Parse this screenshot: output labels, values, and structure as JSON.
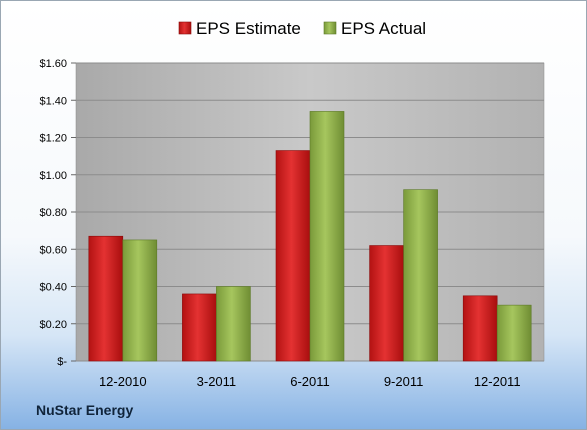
{
  "company": "NuStar Energy",
  "colors": {
    "estimate": "#cc1f1f",
    "actual": "#8fb04a",
    "plot_bg": "#bdbdbd"
  },
  "chart_data": {
    "type": "bar",
    "categories": [
      "12-2010",
      "3-2011",
      "6-2011",
      "9-2011",
      "12-2011"
    ],
    "series": [
      {
        "name": "EPS Estimate",
        "values": [
          0.67,
          0.36,
          1.13,
          0.62,
          0.35
        ]
      },
      {
        "name": "EPS Actual",
        "values": [
          0.65,
          0.4,
          1.34,
          0.92,
          0.3
        ]
      }
    ],
    "ylim": [
      0,
      1.6
    ],
    "yticks": [
      0,
      0.2,
      0.4,
      0.6,
      0.8,
      1.0,
      1.2,
      1.4,
      1.6
    ],
    "ytick_labels": [
      "$-",
      "$0.20",
      "$0.40",
      "$0.60",
      "$0.80",
      "$1.00",
      "$1.20",
      "$1.40",
      "$1.60"
    ],
    "grid": true,
    "legend": "top-center"
  }
}
